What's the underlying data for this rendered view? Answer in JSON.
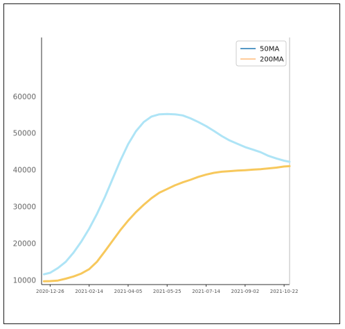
{
  "chart_data": {
    "type": "line",
    "title": "",
    "xlabel": "",
    "ylabel": "",
    "x_ticks": [
      "2020-12-26",
      "2021-02-14",
      "2021-04-05",
      "2021-05-25",
      "2021-07-14",
      "2021-09-02",
      "2021-10-22"
    ],
    "y_ticks": [
      10000,
      20000,
      30000,
      40000,
      50000,
      60000
    ],
    "xlim": [
      "2020-12-15",
      "2021-10-29"
    ],
    "ylim": [
      8800,
      76000
    ],
    "grid": false,
    "legend_position": "top-right",
    "x": [
      "2020-12-18",
      "2020-12-26",
      "2021-01-05",
      "2021-01-15",
      "2021-01-25",
      "2021-02-04",
      "2021-02-14",
      "2021-02-24",
      "2021-03-06",
      "2021-03-16",
      "2021-03-26",
      "2021-04-05",
      "2021-04-15",
      "2021-04-25",
      "2021-05-05",
      "2021-05-15",
      "2021-05-25",
      "2021-06-04",
      "2021-06-14",
      "2021-06-24",
      "2021-07-04",
      "2021-07-14",
      "2021-07-24",
      "2021-08-03",
      "2021-08-13",
      "2021-08-23",
      "2021-09-02",
      "2021-09-12",
      "2021-09-22",
      "2021-10-02",
      "2021-10-12",
      "2021-10-22",
      "2021-10-29"
    ],
    "series": [
      {
        "name": "50MA",
        "legend_color": "#1f77b4",
        "line_color": "#aee4f6",
        "values": [
          11600,
          12000,
          13300,
          15000,
          17500,
          20500,
          24000,
          28000,
          32500,
          37500,
          42500,
          47000,
          50500,
          53000,
          54500,
          55100,
          55200,
          55100,
          54800,
          54000,
          53000,
          51900,
          50600,
          49200,
          48000,
          47100,
          46200,
          45500,
          44800,
          43800,
          43100,
          42500,
          42200
        ]
      },
      {
        "name": "200MA",
        "legend_color": "#ffbb78",
        "line_color": "#f7c85c",
        "values": [
          9700,
          9750,
          9900,
          10400,
          11000,
          11800,
          13000,
          15000,
          17800,
          20700,
          23600,
          26200,
          28500,
          30500,
          32300,
          33800,
          34800,
          35800,
          36600,
          37300,
          38100,
          38700,
          39200,
          39500,
          39650,
          39800,
          39900,
          40050,
          40200,
          40400,
          40600,
          40900,
          41000
        ]
      }
    ]
  }
}
